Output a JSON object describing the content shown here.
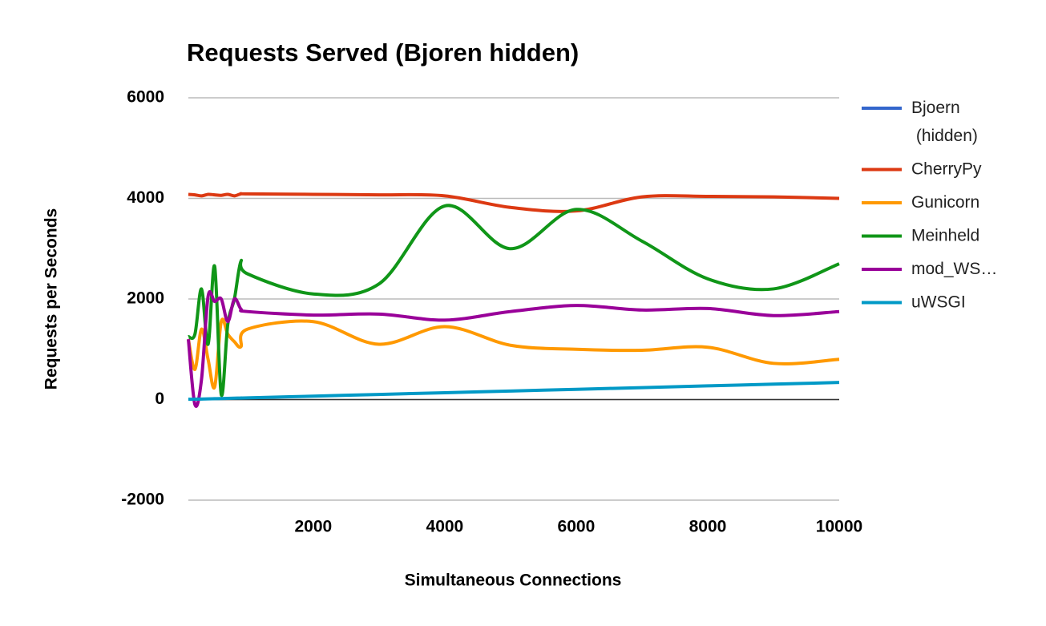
{
  "chart_data": {
    "type": "line",
    "title": "Requests Served (Bjoren hidden)",
    "x_label": "Simultaneous Connections",
    "y_label": "Requests per Seconds",
    "x": [
      100,
      200,
      300,
      400,
      500,
      600,
      700,
      800,
      900,
      1000,
      2000,
      3000,
      4000,
      5000,
      6000,
      7000,
      8000,
      9000,
      10000
    ],
    "series": [
      {
        "name": "Bjoern (hidden)",
        "color": "#3366cc",
        "values": [
          null,
          null,
          null,
          null,
          null,
          null,
          null,
          null,
          null,
          null,
          null,
          null,
          null,
          null,
          null,
          null,
          null,
          null,
          null
        ]
      },
      {
        "name": "CherryPy",
        "color": "#dc3912",
        "values": [
          4080,
          4070,
          4050,
          4080,
          4070,
          4060,
          4080,
          4050,
          4090,
          4090,
          4080,
          4070,
          4050,
          3820,
          3750,
          4030,
          4040,
          4030,
          4000
        ]
      },
      {
        "name": "Gunicorn",
        "color": "#ff9900",
        "values": [
          1200,
          600,
          1400,
          800,
          250,
          1550,
          1300,
          1150,
          1050,
          1400,
          1550,
          1100,
          1450,
          1080,
          1000,
          980,
          1040,
          720,
          800
        ]
      },
      {
        "name": "Meinheld",
        "color": "#109618",
        "values": [
          1250,
          1300,
          2200,
          1100,
          2650,
          100,
          1500,
          2000,
          2750,
          2500,
          2100,
          2300,
          3850,
          3000,
          3780,
          3150,
          2400,
          2200,
          2700
        ]
      },
      {
        "name": "mod_WS…",
        "color": "#990099",
        "values": [
          1200,
          -100,
          400,
          2050,
          1950,
          2000,
          1550,
          2000,
          1800,
          1750,
          1680,
          1700,
          1580,
          1750,
          1870,
          1780,
          1810,
          1670,
          1750
        ]
      },
      {
        "name": "uWSGI",
        "color": "#0099c6",
        "values": [
          5,
          7,
          10,
          14,
          17,
          20,
          24,
          27,
          31,
          34,
          68,
          102,
          136,
          170,
          204,
          238,
          272,
          306,
          340
        ]
      }
    ],
    "xlim": [
      100,
      10000
    ],
    "xticks": [
      2000,
      4000,
      6000,
      8000,
      10000
    ],
    "ylim": [
      -2000,
      6000
    ],
    "yticks": [
      -2000,
      0,
      2000,
      4000,
      6000
    ],
    "grid": true,
    "legend": "right"
  }
}
